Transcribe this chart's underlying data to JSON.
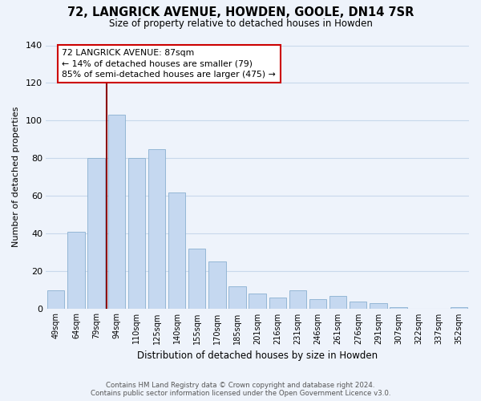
{
  "title": "72, LANGRICK AVENUE, HOWDEN, GOOLE, DN14 7SR",
  "subtitle": "Size of property relative to detached houses in Howden",
  "xlabel": "Distribution of detached houses by size in Howden",
  "ylabel": "Number of detached properties",
  "categories": [
    "49sqm",
    "64sqm",
    "79sqm",
    "94sqm",
    "110sqm",
    "125sqm",
    "140sqm",
    "155sqm",
    "170sqm",
    "185sqm",
    "201sqm",
    "216sqm",
    "231sqm",
    "246sqm",
    "261sqm",
    "276sqm",
    "291sqm",
    "307sqm",
    "322sqm",
    "337sqm",
    "352sqm"
  ],
  "values": [
    10,
    41,
    80,
    103,
    80,
    85,
    62,
    32,
    25,
    12,
    8,
    6,
    10,
    5,
    7,
    4,
    3,
    1,
    0,
    0,
    1
  ],
  "bar_color": "#c5d8f0",
  "bar_edge_color": "#8ab0d0",
  "vline_color": "#8b0000",
  "vline_x": 2.5,
  "ylim": [
    0,
    140
  ],
  "yticks": [
    0,
    20,
    40,
    60,
    80,
    100,
    120,
    140
  ],
  "annotation_title": "72 LANGRICK AVENUE: 87sqm",
  "annotation_line1": "← 14% of detached houses are smaller (79)",
  "annotation_line2": "85% of semi-detached houses are larger (475) →",
  "annotation_box_color": "#ffffff",
  "annotation_box_edge": "#cc0000",
  "footer_line1": "Contains HM Land Registry data © Crown copyright and database right 2024.",
  "footer_line2": "Contains public sector information licensed under the Open Government Licence v3.0.",
  "background_color": "#eef3fb",
  "grid_color": "#c8d8eb"
}
